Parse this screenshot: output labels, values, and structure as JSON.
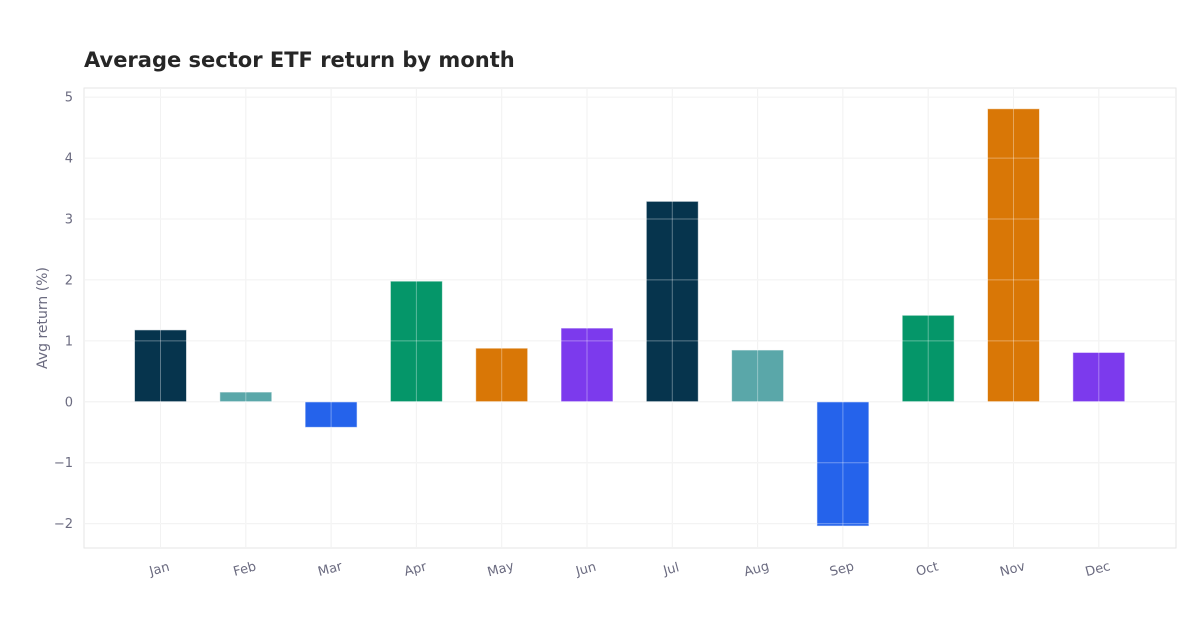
{
  "chart_data": {
    "type": "bar",
    "title": "Average sector ETF return by month",
    "xlabel": "",
    "ylabel": "Avg return (%)",
    "categories": [
      "Jan",
      "Feb",
      "Mar",
      "Apr",
      "May",
      "Jun",
      "Jul",
      "Aug",
      "Sep",
      "Oct",
      "Nov",
      "Dec"
    ],
    "values": [
      1.18,
      0.16,
      -0.42,
      1.98,
      0.88,
      1.21,
      3.29,
      0.85,
      -2.04,
      1.42,
      4.81,
      0.81
    ],
    "colors": [
      "#06344d",
      "#5aa7a9",
      "#2563eb",
      "#059669",
      "#d97706",
      "#7c3aed",
      "#06344d",
      "#5aa7a9",
      "#2563eb",
      "#059669",
      "#d97706",
      "#7c3aed"
    ],
    "ylim": [
      -2.4,
      5.15
    ],
    "yticks": [
      -2,
      -1,
      0,
      1,
      2,
      3,
      4,
      5
    ],
    "ytick_labels": [
      "−2",
      "−1",
      "0",
      "1",
      "2",
      "3",
      "4",
      "5"
    ],
    "grid": true,
    "legend": "none"
  }
}
